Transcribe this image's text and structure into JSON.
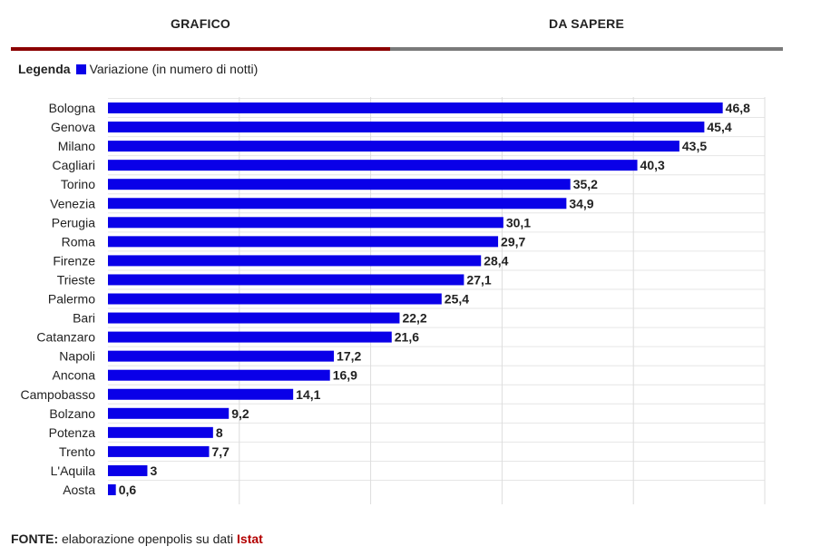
{
  "tabs": {
    "grafico": "GRAFICO",
    "da_sapere": "DA SAPERE"
  },
  "legend": {
    "title": "Legenda",
    "label": "Variazione (in numero di notti)"
  },
  "footer": {
    "label": "FONTE:",
    "text": "elaborazione openpolis su dati",
    "link": "Istat"
  },
  "colors": {
    "bar": "#0a00e8",
    "active_tab": "#8b0000",
    "inactive_tab": "#7a7a7a",
    "link": "#b30000"
  },
  "chart_data": {
    "type": "bar",
    "orientation": "horizontal",
    "categories": [
      "Bologna",
      "Genova",
      "Milano",
      "Cagliari",
      "Torino",
      "Venezia",
      "Perugia",
      "Roma",
      "Firenze",
      "Trieste",
      "Palermo",
      "Bari",
      "Catanzaro",
      "Napoli",
      "Ancona",
      "Campobasso",
      "Bolzano",
      "Potenza",
      "Trento",
      "L'Aquila",
      "Aosta"
    ],
    "series": [
      {
        "name": "Variazione (in numero di notti)",
        "values": [
          46.8,
          45.4,
          43.5,
          40.3,
          35.2,
          34.9,
          30.1,
          29.7,
          28.4,
          27.1,
          25.4,
          22.2,
          21.6,
          17.2,
          16.9,
          14.1,
          9.2,
          8,
          7.7,
          3,
          0.6
        ],
        "value_labels": [
          "46,8",
          "45,4",
          "43,5",
          "40,3",
          "35,2",
          "34,9",
          "30,1",
          "29,7",
          "28,4",
          "27,1",
          "25,4",
          "22,2",
          "21,6",
          "17,2",
          "16,9",
          "14,1",
          "9,2",
          "8",
          "7,7",
          "3",
          "0,6"
        ]
      }
    ],
    "xlim": [
      0,
      50
    ],
    "grid": true,
    "legend_position": "top-left"
  }
}
